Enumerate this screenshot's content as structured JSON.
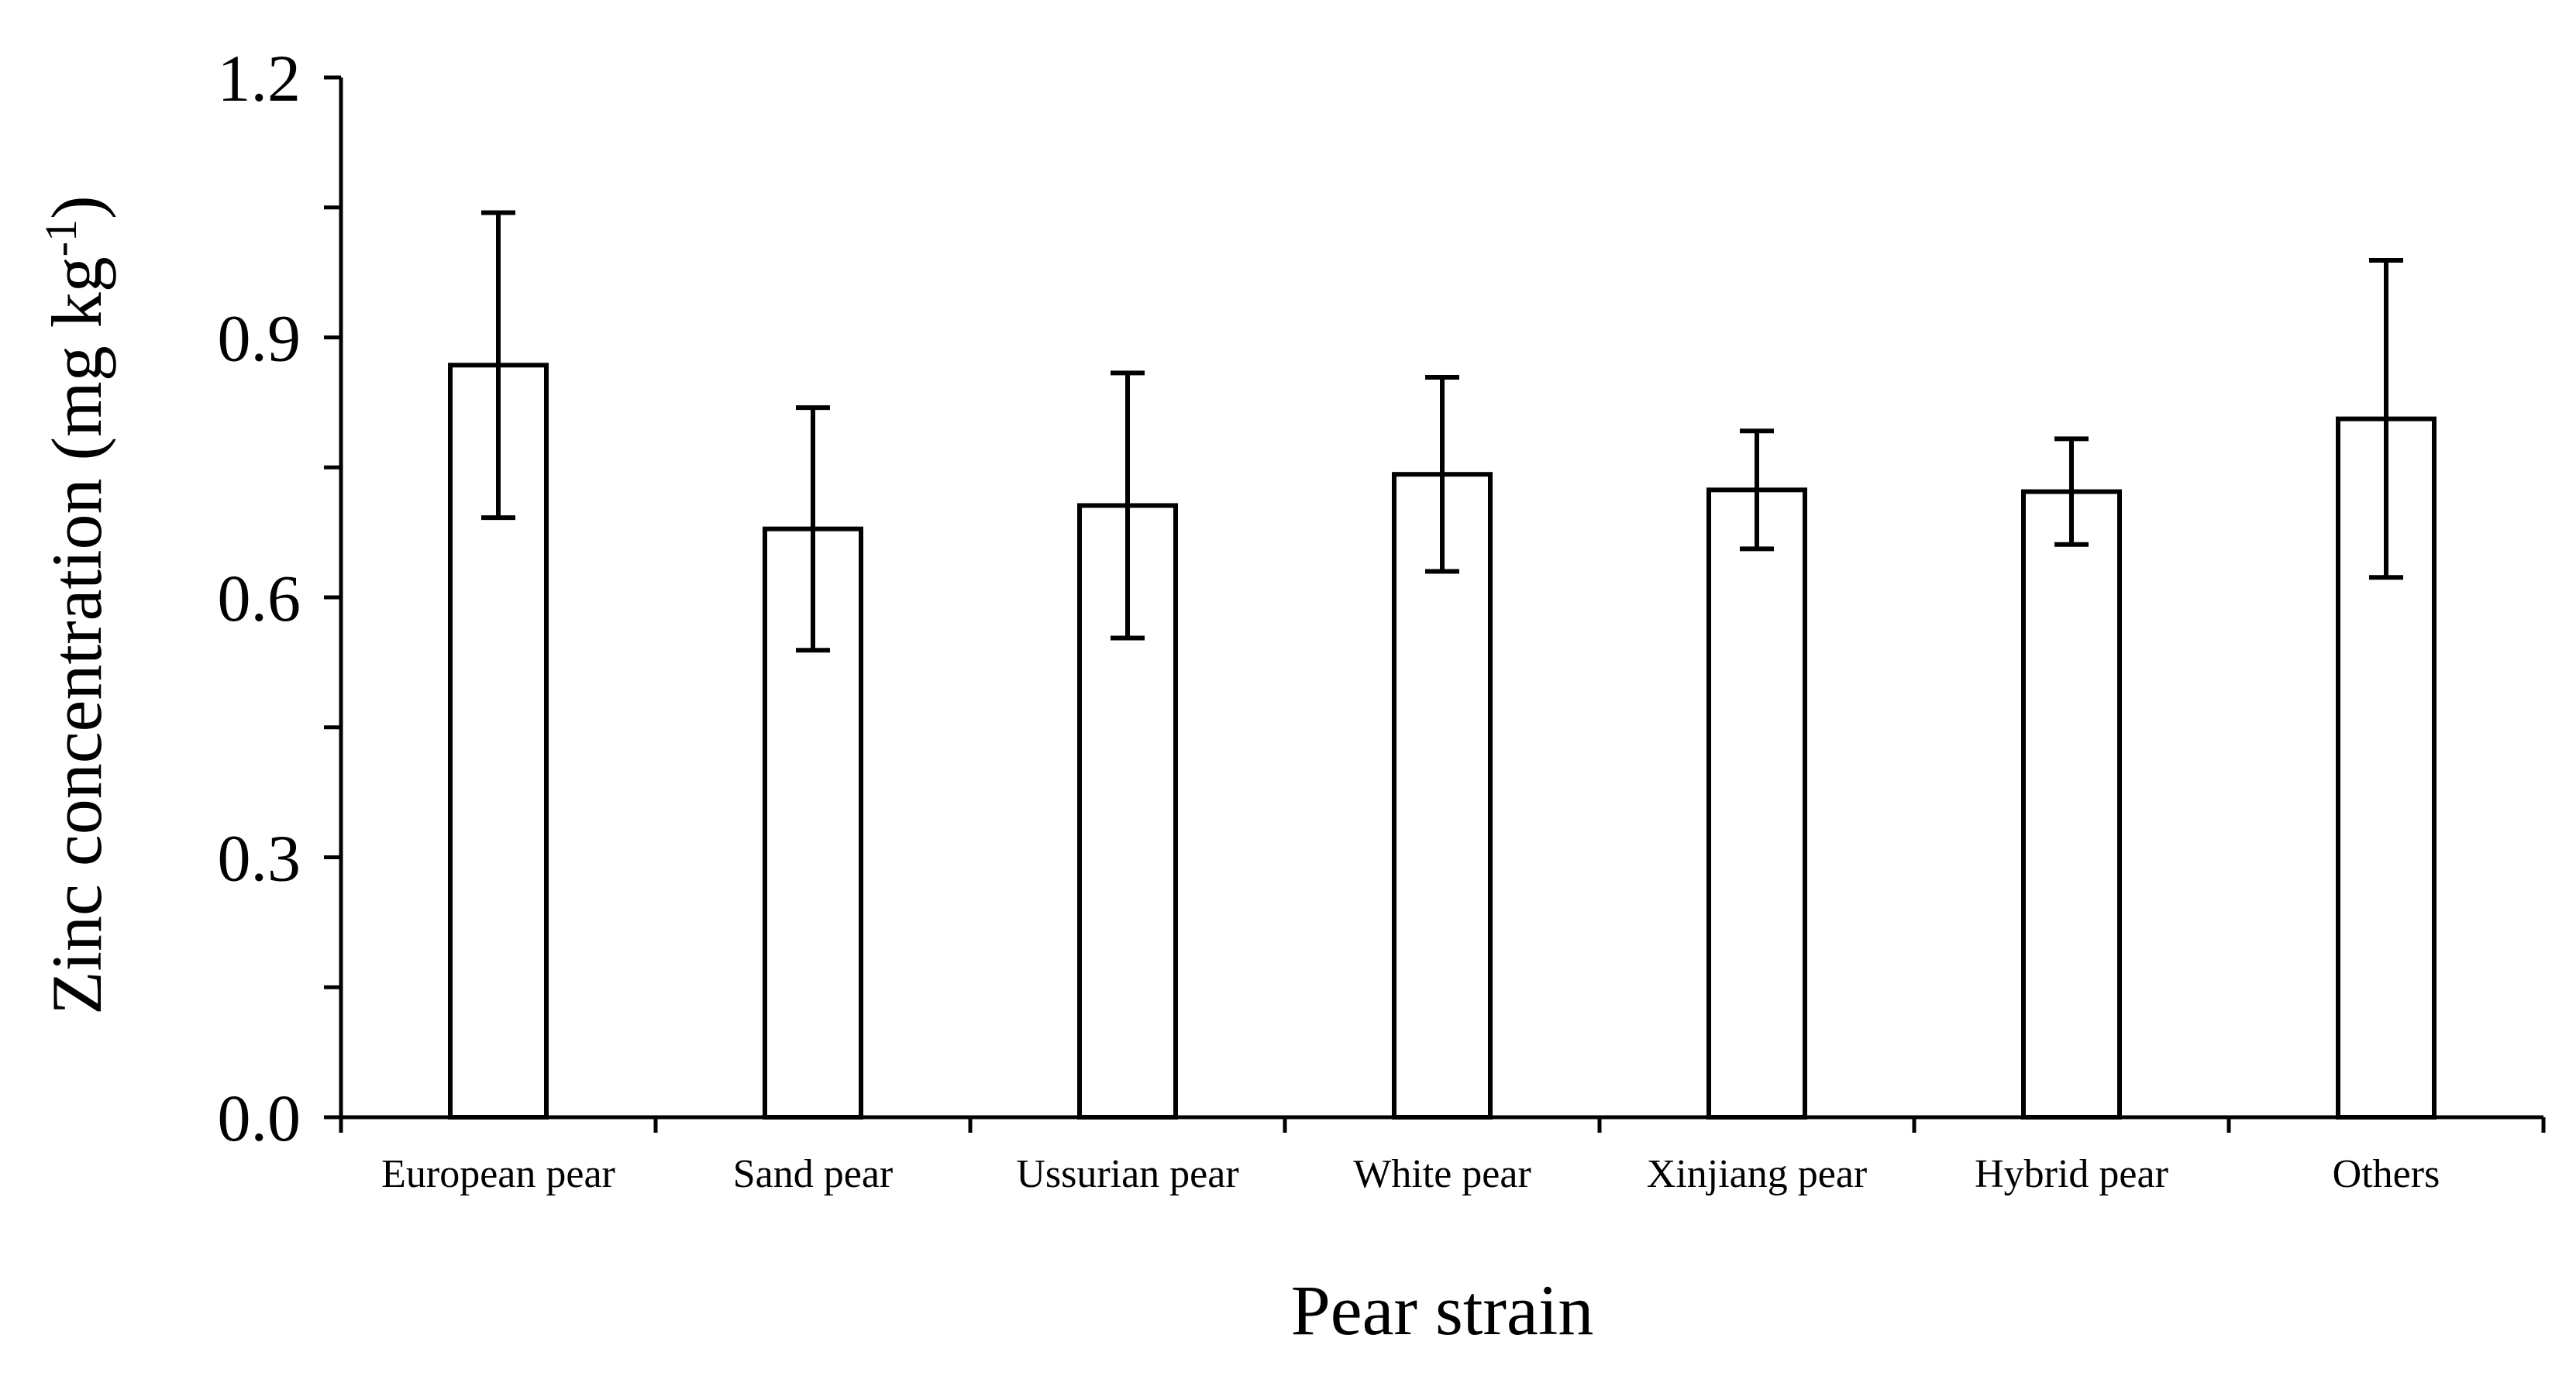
{
  "chart_data": {
    "type": "bar",
    "title": "",
    "xlabel": "Pear strain",
    "ylabel": {
      "main": "Zinc concentration (mg kg",
      "superscript": "-1",
      "close": ")"
    },
    "categories": [
      "European pear",
      "Sand pear",
      "Ussurian pear",
      "White pear",
      "Xinjiang pear",
      "Hybrid pear",
      "Others"
    ],
    "values": [
      0.868,
      0.679,
      0.706,
      0.742,
      0.724,
      0.722,
      0.806
    ],
    "errors": [
      0.176,
      0.14,
      0.153,
      0.112,
      0.068,
      0.061,
      0.183
    ],
    "ylim": [
      0,
      1.2
    ],
    "yticks": [
      "0.0",
      "0.3",
      "0.6",
      "0.9",
      "1.2"
    ],
    "ytick_values": [
      0,
      0.3,
      0.6,
      0.9,
      1.2
    ],
    "minor_tick_step": 0.15,
    "grid": false,
    "legend": "none",
    "bar_color": "#ffffff",
    "edge_color": "#000000"
  }
}
